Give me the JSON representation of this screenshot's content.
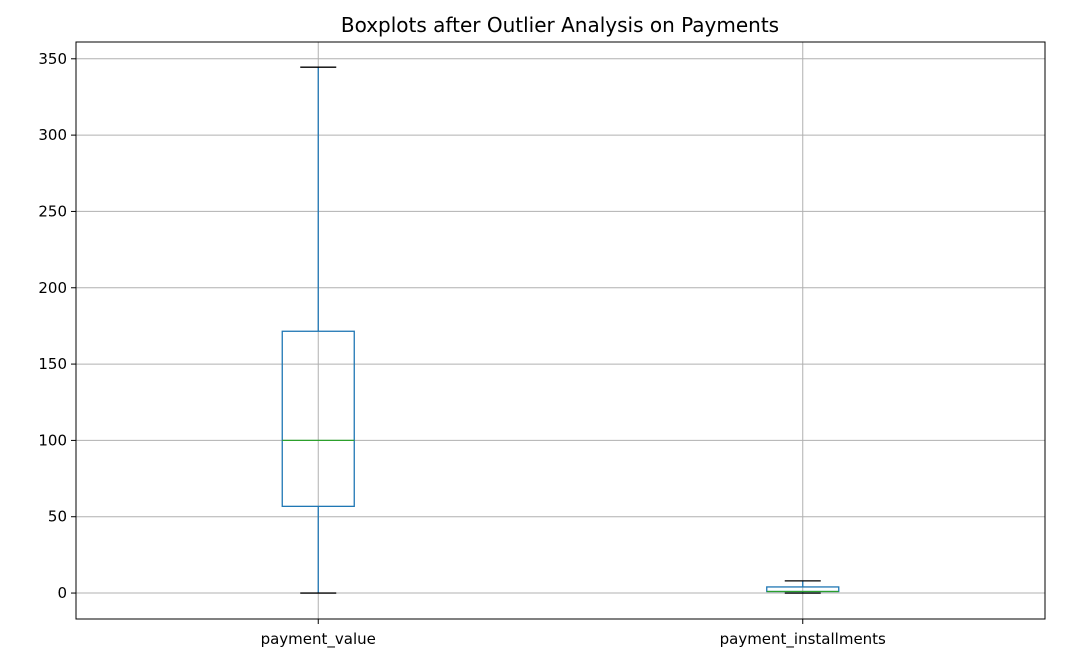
{
  "chart_data": {
    "type": "boxplot",
    "title": "Boxplots after Outlier Analysis on Payments",
    "xlabel": "",
    "ylabel": "",
    "categories": [
      "payment_value",
      "payment_installments"
    ],
    "boxes": [
      {
        "category": "payment_value",
        "whisker_low": 0,
        "q1": 56.8,
        "median": 100.0,
        "q3": 171.5,
        "whisker_high": 344.5
      },
      {
        "category": "payment_installments",
        "whisker_low": 0,
        "q1": 1,
        "median": 1,
        "q3": 4,
        "whisker_high": 8
      }
    ],
    "ylim": [
      -17,
      361
    ],
    "yticks": [
      0,
      50,
      100,
      150,
      200,
      250,
      300,
      350
    ],
    "grid": true,
    "colors": {
      "box": "#1f77b4",
      "median": "#2ca02c",
      "cap": "#000000",
      "grid": "#b0b0b0",
      "axes": "#000000"
    }
  }
}
